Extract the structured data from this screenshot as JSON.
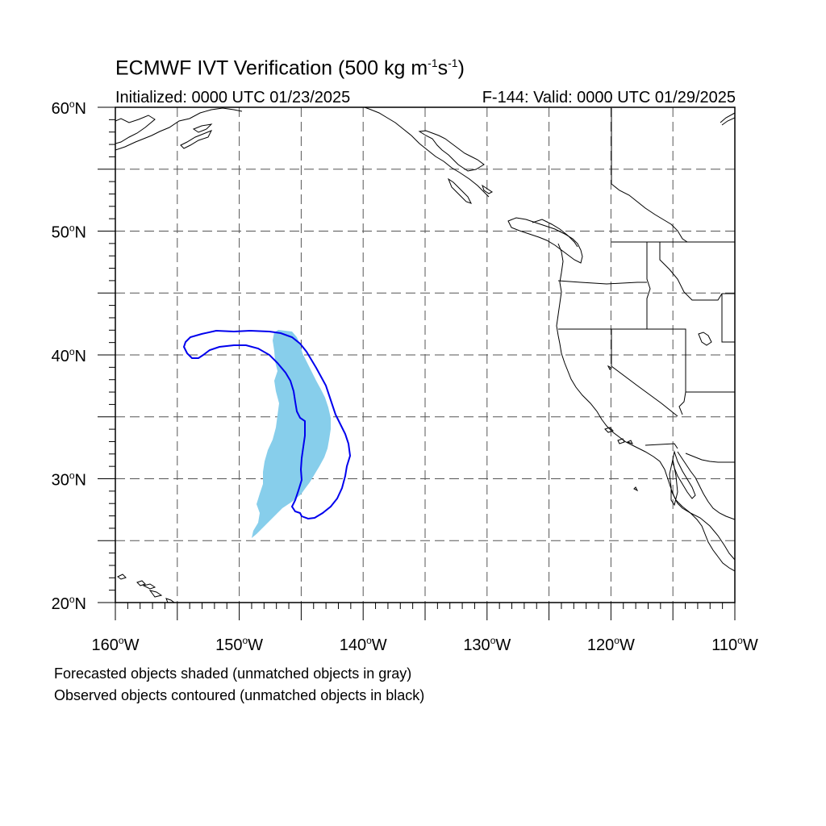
{
  "header": {
    "title": "ECMWF IVT Verification (500 kg m",
    "title_exp1": "-1",
    "title_mid": "s",
    "title_exp2": "-1",
    "title_end": ")",
    "initialized": "Initialized: 0000 UTC 01/23/2025",
    "valid": "F-144: Valid: 0000 UTC 01/29/2025"
  },
  "map": {
    "lon_range": [
      -160,
      -110
    ],
    "lat_range": [
      20,
      60
    ],
    "y_tick_labels": [
      {
        "lat": 60,
        "label": "60",
        "suffix": "N"
      },
      {
        "lat": 50,
        "label": "50",
        "suffix": "N"
      },
      {
        "lat": 40,
        "label": "40",
        "suffix": "N"
      },
      {
        "lat": 30,
        "label": "30",
        "suffix": "N"
      },
      {
        "lat": 20,
        "label": "20",
        "suffix": "N"
      }
    ],
    "x_tick_labels": [
      {
        "lon": -160,
        "label": "160",
        "suffix": "W"
      },
      {
        "lon": -150,
        "label": "150",
        "suffix": "W"
      },
      {
        "lon": -140,
        "label": "140",
        "suffix": "W"
      },
      {
        "lon": -130,
        "label": "130",
        "suffix": "W"
      },
      {
        "lon": -120,
        "label": "120",
        "suffix": "W"
      },
      {
        "lon": -110,
        "label": "110",
        "suffix": "W"
      }
    ],
    "gridline_style": "dashed",
    "forecast_object_color": "#87ceeb",
    "observed_contour_color": "#0000ee",
    "coastline_color": "#000000"
  },
  "captions": {
    "line1": "Forecasted objects shaded (unmatched objects in gray)",
    "line2": "Observed objects contoured (unmatched objects in black)"
  }
}
